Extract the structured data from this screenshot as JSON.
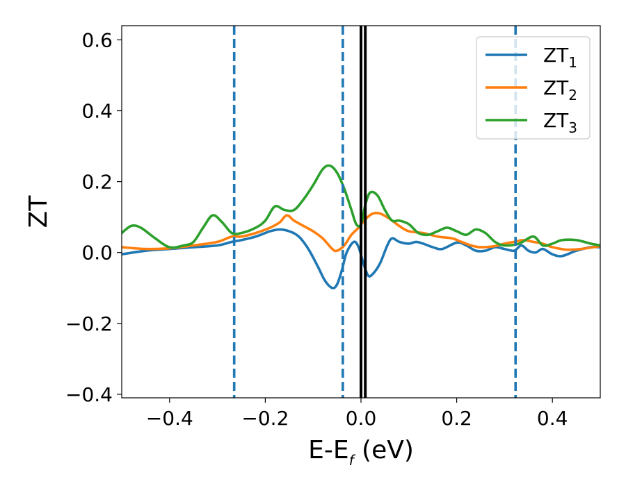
{
  "chart_data": {
    "type": "line",
    "xlabel": {
      "main": "E-E",
      "sub": "f",
      "tail": " (eV)"
    },
    "ylabel": "ZT",
    "xlim": [
      -0.5,
      0.5
    ],
    "ylim": [
      -0.41,
      0.64
    ],
    "xticks": [
      -0.4,
      -0.2,
      0.0,
      0.2,
      0.4
    ],
    "xtick_labels": [
      "−0.4",
      "−0.2",
      "0.0",
      "0.2",
      "0.4"
    ],
    "yticks": [
      -0.4,
      -0.2,
      0.0,
      0.2,
      0.4,
      0.6
    ],
    "ytick_labels": [
      "−0.4",
      "−0.2",
      "0.0",
      "0.2",
      "0.4",
      "0.6"
    ],
    "grid": false,
    "legend_position": "top-right",
    "vertical_lines": [
      {
        "x": -0.265,
        "style": "dashed",
        "color": "#1f77b4"
      },
      {
        "x": -0.038,
        "style": "dashed",
        "color": "#1f77b4"
      },
      {
        "x": 0.323,
        "style": "dashed",
        "color": "#1f77b4"
      },
      {
        "x": 0.0,
        "style": "solid",
        "color": "#000000"
      },
      {
        "x": 0.009,
        "style": "solid",
        "color": "#000000"
      }
    ],
    "series": [
      {
        "name": "ZT",
        "name_sub": "1",
        "color": "#1f77b4",
        "points": [
          [
            -0.5,
            -0.005
          ],
          [
            -0.45,
            0.005
          ],
          [
            -0.4,
            0.01
          ],
          [
            -0.35,
            0.015
          ],
          [
            -0.3,
            0.02
          ],
          [
            -0.27,
            0.03
          ],
          [
            -0.25,
            0.035
          ],
          [
            -0.22,
            0.045
          ],
          [
            -0.19,
            0.06
          ],
          [
            -0.17,
            0.065
          ],
          [
            -0.15,
            0.06
          ],
          [
            -0.13,
            0.045
          ],
          [
            -0.11,
            0.01
          ],
          [
            -0.09,
            -0.04
          ],
          [
            -0.075,
            -0.08
          ],
          [
            -0.06,
            -0.1
          ],
          [
            -0.05,
            -0.09
          ],
          [
            -0.04,
            -0.05
          ],
          [
            -0.03,
            0.0
          ],
          [
            -0.015,
            0.03
          ],
          [
            -0.005,
            0.015
          ],
          [
            0.005,
            -0.03
          ],
          [
            0.015,
            -0.065
          ],
          [
            0.025,
            -0.06
          ],
          [
            0.04,
            -0.03
          ],
          [
            0.055,
            0.02
          ],
          [
            0.065,
            0.04
          ],
          [
            0.08,
            0.03
          ],
          [
            0.1,
            0.025
          ],
          [
            0.115,
            0.03
          ],
          [
            0.13,
            0.025
          ],
          [
            0.15,
            0.015
          ],
          [
            0.17,
            0.01
          ],
          [
            0.2,
            0.028
          ],
          [
            0.22,
            0.02
          ],
          [
            0.24,
            0.005
          ],
          [
            0.26,
            0.005
          ],
          [
            0.28,
            0.015
          ],
          [
            0.3,
            0.01
          ],
          [
            0.32,
            0.005
          ],
          [
            0.335,
            0.02
          ],
          [
            0.35,
            0.005
          ],
          [
            0.365,
            0.0
          ],
          [
            0.38,
            0.01
          ],
          [
            0.4,
            -0.005
          ],
          [
            0.42,
            -0.01
          ],
          [
            0.45,
            0.005
          ],
          [
            0.48,
            0.015
          ],
          [
            0.5,
            0.015
          ]
        ]
      },
      {
        "name": "ZT",
        "name_sub": "2",
        "color": "#ff7f0e",
        "points": [
          [
            -0.5,
            0.015
          ],
          [
            -0.45,
            0.01
          ],
          [
            -0.4,
            0.012
          ],
          [
            -0.35,
            0.02
          ],
          [
            -0.3,
            0.03
          ],
          [
            -0.27,
            0.045
          ],
          [
            -0.25,
            0.045
          ],
          [
            -0.22,
            0.055
          ],
          [
            -0.19,
            0.07
          ],
          [
            -0.17,
            0.085
          ],
          [
            -0.155,
            0.105
          ],
          [
            -0.14,
            0.09
          ],
          [
            -0.12,
            0.075
          ],
          [
            -0.1,
            0.06
          ],
          [
            -0.08,
            0.04
          ],
          [
            -0.06,
            0.01
          ],
          [
            -0.05,
            0.005
          ],
          [
            -0.035,
            0.02
          ],
          [
            -0.02,
            0.05
          ],
          [
            -0.005,
            0.07
          ],
          [
            0.01,
            0.095
          ],
          [
            0.025,
            0.11
          ],
          [
            0.04,
            0.11
          ],
          [
            0.06,
            0.095
          ],
          [
            0.08,
            0.075
          ],
          [
            0.1,
            0.06
          ],
          [
            0.13,
            0.055
          ],
          [
            0.16,
            0.045
          ],
          [
            0.19,
            0.04
          ],
          [
            0.21,
            0.03
          ],
          [
            0.23,
            0.02
          ],
          [
            0.25,
            0.015
          ],
          [
            0.28,
            0.018
          ],
          [
            0.3,
            0.025
          ],
          [
            0.32,
            0.03
          ],
          [
            0.34,
            0.035
          ],
          [
            0.36,
            0.03
          ],
          [
            0.38,
            0.025
          ],
          [
            0.4,
            0.015
          ],
          [
            0.43,
            0.008
          ],
          [
            0.46,
            0.01
          ],
          [
            0.5,
            0.018
          ]
        ]
      },
      {
        "name": "ZT",
        "name_sub": "3",
        "color": "#2ca02c",
        "points": [
          [
            -0.5,
            0.055
          ],
          [
            -0.48,
            0.075
          ],
          [
            -0.46,
            0.07
          ],
          [
            -0.43,
            0.04
          ],
          [
            -0.4,
            0.015
          ],
          [
            -0.37,
            0.02
          ],
          [
            -0.35,
            0.03
          ],
          [
            -0.33,
            0.07
          ],
          [
            -0.31,
            0.105
          ],
          [
            -0.29,
            0.085
          ],
          [
            -0.27,
            0.055
          ],
          [
            -0.25,
            0.055
          ],
          [
            -0.22,
            0.07
          ],
          [
            -0.2,
            0.09
          ],
          [
            -0.18,
            0.13
          ],
          [
            -0.16,
            0.12
          ],
          [
            -0.14,
            0.12
          ],
          [
            -0.12,
            0.15
          ],
          [
            -0.1,
            0.19
          ],
          [
            -0.08,
            0.235
          ],
          [
            -0.065,
            0.245
          ],
          [
            -0.05,
            0.225
          ],
          [
            -0.035,
            0.18
          ],
          [
            -0.02,
            0.12
          ],
          [
            -0.01,
            0.08
          ],
          [
            0.0,
            0.08
          ],
          [
            0.01,
            0.14
          ],
          [
            0.02,
            0.17
          ],
          [
            0.035,
            0.16
          ],
          [
            0.05,
            0.12
          ],
          [
            0.065,
            0.09
          ],
          [
            0.08,
            0.09
          ],
          [
            0.1,
            0.08
          ],
          [
            0.12,
            0.055
          ],
          [
            0.14,
            0.05
          ],
          [
            0.16,
            0.06
          ],
          [
            0.18,
            0.07
          ],
          [
            0.2,
            0.06
          ],
          [
            0.22,
            0.05
          ],
          [
            0.24,
            0.065
          ],
          [
            0.26,
            0.055
          ],
          [
            0.28,
            0.03
          ],
          [
            0.3,
            0.02
          ],
          [
            0.33,
            0.025
          ],
          [
            0.36,
            0.045
          ],
          [
            0.38,
            0.02
          ],
          [
            0.4,
            0.025
          ],
          [
            0.42,
            0.035
          ],
          [
            0.45,
            0.035
          ],
          [
            0.48,
            0.025
          ],
          [
            0.5,
            0.02
          ]
        ]
      }
    ]
  }
}
